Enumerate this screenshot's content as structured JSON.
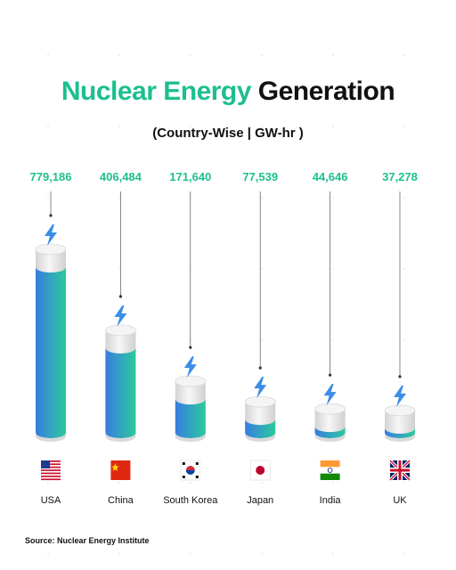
{
  "title": {
    "accent": "Nuclear Energy",
    "rest": "Generation"
  },
  "subtitle": "(Country-Wise  | GW-hr )",
  "source": "Source: Nuclear Energy Institute",
  "colors": {
    "accent": "#1dbf8f",
    "bar_top": "#22c99a",
    "bar_bottom": "#2f77e0",
    "cylinder": "#e6e6e6",
    "bolt": "#3a8ee6"
  },
  "chart_data": {
    "type": "bar",
    "title": "Nuclear Energy Generation",
    "subtitle": "(Country-Wise  | GW-hr )",
    "categories": [
      "USA",
      "China",
      "South Korea",
      "Japan",
      "India",
      "UK"
    ],
    "values": [
      779186,
      406484,
      171640,
      77539,
      44646,
      37278
    ],
    "labels": [
      "779,186",
      "406,484",
      "171,640",
      "77,539",
      "44,646",
      "37,278"
    ],
    "flags": [
      "us-flag",
      "china-flag",
      "south-korea-flag",
      "japan-flag",
      "india-flag",
      "uk-flag"
    ],
    "ylim": [
      0,
      779186
    ],
    "grid": false,
    "legend": "none"
  }
}
